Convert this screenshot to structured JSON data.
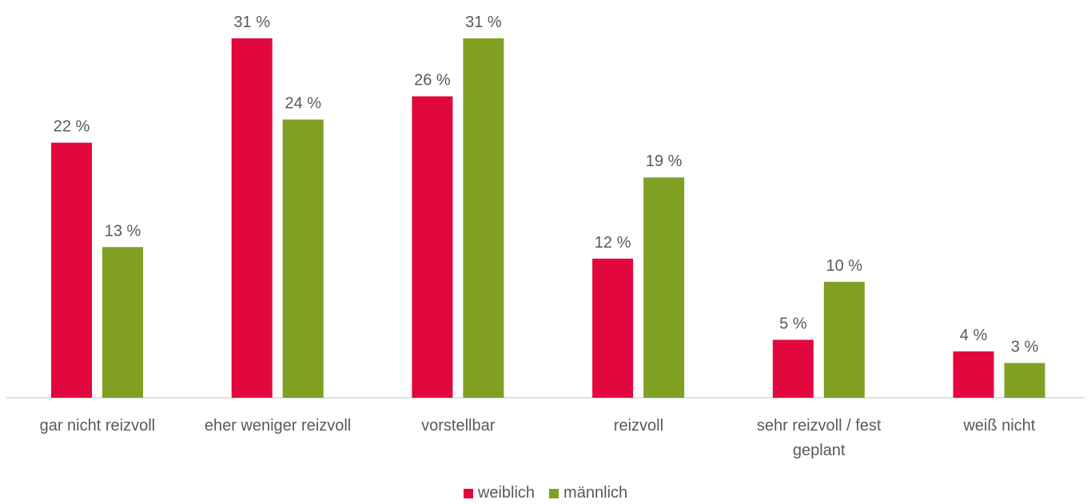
{
  "chart_data": {
    "type": "bar",
    "categories": [
      [
        "gar nicht reizvoll"
      ],
      [
        "eher weniger reizvoll"
      ],
      [
        "vorstellbar"
      ],
      [
        "reizvoll"
      ],
      [
        "sehr reizvoll / fest",
        "geplant"
      ],
      [
        "weiß nicht"
      ]
    ],
    "series": [
      {
        "name": "weiblich",
        "color": "#e2083e",
        "values": [
          22,
          31,
          26,
          12,
          5,
          4
        ],
        "labels": [
          "22 %",
          "31 %",
          "26 %",
          "12 %",
          "5 %",
          "4 %"
        ]
      },
      {
        "name": "männlich",
        "color": "#80a024",
        "values": [
          13,
          24,
          31,
          19,
          10,
          3
        ],
        "labels": [
          "13 %",
          "24 %",
          "31 %",
          "19 %",
          "10 %",
          "3 %"
        ]
      }
    ],
    "unit": "%",
    "title": "",
    "xlabel": "",
    "ylabel": "",
    "ylim": [
      0,
      31
    ],
    "grid": false,
    "legend_position": "bottom-center"
  }
}
